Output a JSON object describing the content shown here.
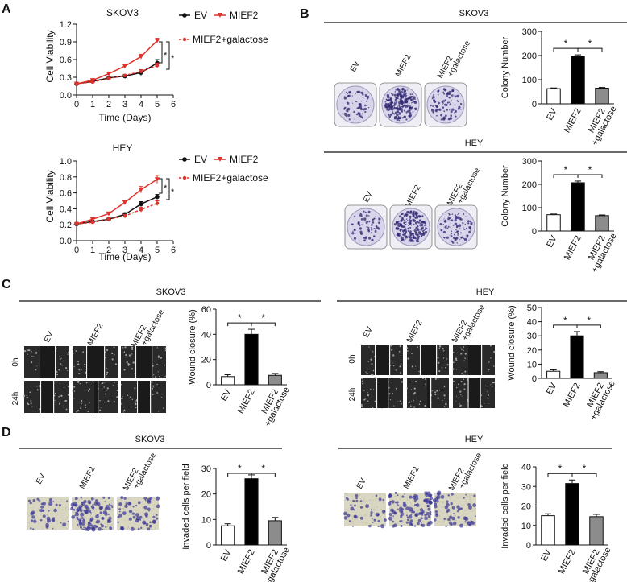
{
  "panel_letters": [
    "A",
    "B",
    "C",
    "D"
  ],
  "labels": {
    "skov3": "SKOV3",
    "hey": "HEY",
    "cell_viability": "Cell Viability",
    "time_days": "Time (Days)",
    "colony_number": "Colony Number",
    "wound_closure": "Wound closure (%)",
    "invaded": "Invaded cells per field",
    "t0": "0h",
    "t24": "24h",
    "ev": "EV",
    "mief2": "MIEF2",
    "mief2_line1": "MIEF2",
    "galactose_line2": "+galactose",
    "mief2_galactose": "MIEF2+galactose",
    "sig": "*"
  },
  "colors": {
    "ev": "#111111",
    "mief2": "#e0312b",
    "galactose": "#e0312b",
    "bar_ev": "#ffffff",
    "bar_mief2": "#000000",
    "bar_gal": "#8c8c8c",
    "dish": "#d8d4ea",
    "wound": "#2a2a2a",
    "invasion_bg": "#d9d6c2"
  },
  "chart_data": [
    {
      "id": "A_skov3",
      "type": "line",
      "title": "SKOV3",
      "xlabel": "Time (Days)",
      "ylabel": "Cell Viability",
      "xlim": [
        0,
        6
      ],
      "ylim": [
        0,
        1.2
      ],
      "xticks": [
        0,
        1,
        2,
        3,
        4,
        5,
        6
      ],
      "yticks": [
        0.0,
        0.3,
        0.6,
        0.9,
        1.2
      ],
      "ytick_labels": [
        "0.0",
        "0.3",
        "0.6",
        "0.9",
        "1.2"
      ],
      "x": [
        0,
        1,
        2,
        3,
        4,
        5
      ],
      "series": [
        {
          "name": "EV",
          "values": [
            0.19,
            0.23,
            0.29,
            0.32,
            0.38,
            0.54
          ],
          "errors": [
            0.01,
            0.01,
            0.02,
            0.02,
            0.05,
            0.06
          ]
        },
        {
          "name": "MIEF2",
          "values": [
            0.19,
            0.25,
            0.36,
            0.49,
            0.65,
            0.92
          ],
          "errors": [
            0.01,
            0.01,
            0.03,
            0.03,
            0.04,
            0.04
          ]
        },
        {
          "name": "MIEF2+galactose",
          "values": [
            0.19,
            0.22,
            0.28,
            0.33,
            0.4,
            0.5
          ],
          "errors": [
            0.01,
            0.01,
            0.02,
            0.02,
            0.03,
            0.04
          ]
        }
      ]
    },
    {
      "id": "A_hey",
      "type": "line",
      "title": "HEY",
      "xlabel": "Time (Days)",
      "ylabel": "Cell Viability",
      "xlim": [
        0,
        6
      ],
      "ylim": [
        0,
        1.0
      ],
      "xticks": [
        0,
        1,
        2,
        3,
        4,
        5,
        6
      ],
      "yticks": [
        0.0,
        0.2,
        0.4,
        0.6,
        0.8,
        1.0
      ],
      "ytick_labels": [
        "0.0",
        "0.2",
        "0.4",
        "0.6",
        "0.8",
        "1.0"
      ],
      "x": [
        0,
        1,
        2,
        3,
        4,
        5
      ],
      "series": [
        {
          "name": "EV",
          "values": [
            0.21,
            0.24,
            0.27,
            0.33,
            0.46,
            0.55
          ],
          "errors": [
            0.01,
            0.01,
            0.02,
            0.02,
            0.03,
            0.03
          ]
        },
        {
          "name": "MIEF2",
          "values": [
            0.21,
            0.27,
            0.34,
            0.48,
            0.64,
            0.77
          ],
          "errors": [
            0.01,
            0.01,
            0.02,
            0.03,
            0.04,
            0.05
          ]
        },
        {
          "name": "MIEF2+galactose",
          "values": [
            0.21,
            0.23,
            0.27,
            0.31,
            0.39,
            0.47
          ],
          "errors": [
            0.01,
            0.01,
            0.02,
            0.02,
            0.03,
            0.03
          ]
        }
      ]
    },
    {
      "id": "B_skov3",
      "type": "bar",
      "ylabel": "Colony Number",
      "categories": [
        "EV",
        "MIEF2",
        "MIEF2 +galactose"
      ],
      "values": [
        63,
        197,
        65
      ],
      "errors": [
        3,
        6,
        3
      ],
      "ylim": [
        0,
        300
      ],
      "yticks": [
        0,
        100,
        200,
        300
      ],
      "sig_pairs": [
        [
          0,
          1
        ],
        [
          1,
          2
        ]
      ]
    },
    {
      "id": "B_hey",
      "type": "bar",
      "ylabel": "Colony Number",
      "categories": [
        "EV",
        "MIEF2",
        "MIEF2 +galactose"
      ],
      "values": [
        70,
        207,
        66
      ],
      "errors": [
        3,
        7,
        3
      ],
      "ylim": [
        0,
        300
      ],
      "yticks": [
        0,
        100,
        200,
        300
      ],
      "sig_pairs": [
        [
          0,
          1
        ],
        [
          1,
          2
        ]
      ]
    },
    {
      "id": "C_skov3",
      "type": "bar",
      "ylabel": "Wound closure (%)",
      "categories": [
        "EV",
        "MIEF2",
        "MIEF2 +galactose"
      ],
      "values": [
        6.5,
        40,
        7.5
      ],
      "errors": [
        1.5,
        4,
        1.5
      ],
      "ylim": [
        0,
        60
      ],
      "yticks": [
        0,
        20,
        40,
        60
      ],
      "sig_pairs": [
        [
          0,
          1
        ],
        [
          1,
          2
        ]
      ]
    },
    {
      "id": "C_hey",
      "type": "bar",
      "ylabel": "Wound closure (%)",
      "categories": [
        "EV",
        "MIEF2",
        "MIEF2 +galactose"
      ],
      "values": [
        5,
        30,
        4
      ],
      "errors": [
        1,
        3,
        0.7
      ],
      "ylim": [
        0,
        50
      ],
      "yticks": [
        0,
        10,
        20,
        30,
        40,
        50
      ],
      "sig_pairs": [
        [
          0,
          1
        ],
        [
          1,
          2
        ]
      ]
    },
    {
      "id": "D_skov3",
      "type": "bar",
      "ylabel": "Invaded cells per field",
      "categories": [
        "EV",
        "MIEF2",
        "MIEF2 +galactose"
      ],
      "values": [
        7.5,
        26,
        9.5
      ],
      "errors": [
        0.8,
        1.5,
        1.3
      ],
      "ylim": [
        0,
        30
      ],
      "yticks": [
        0,
        10,
        20,
        30
      ],
      "sig_pairs": [
        [
          0,
          1
        ],
        [
          1,
          2
        ]
      ]
    },
    {
      "id": "D_hey",
      "type": "bar",
      "ylabel": "Invaded cells per field",
      "categories": [
        "EV",
        "MIEF2",
        "MIEF2 +galactose"
      ],
      "values": [
        15,
        31.5,
        14.5
      ],
      "errors": [
        1,
        1.8,
        1.2
      ],
      "ylim": [
        0,
        40
      ],
      "yticks": [
        0,
        10,
        20,
        30,
        40
      ],
      "sig_pairs": [
        [
          0,
          1
        ],
        [
          1,
          2
        ]
      ]
    }
  ]
}
